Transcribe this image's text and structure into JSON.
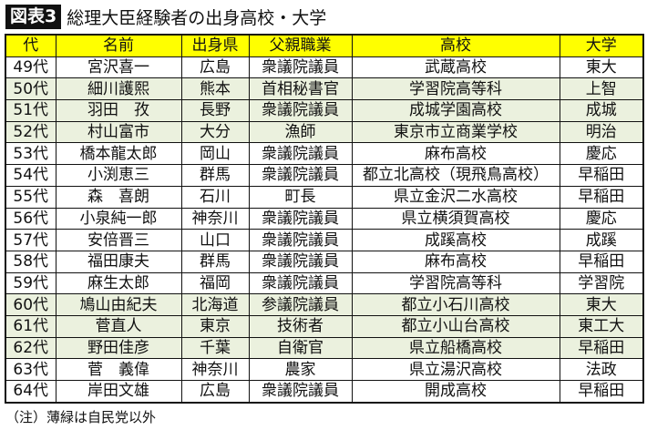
{
  "title": {
    "badge": "図表3",
    "text": "総理大臣経験者の出身高校・大学"
  },
  "colors": {
    "header": "#ffff00",
    "non_ldp_row": "#ebf1de"
  },
  "columns": [
    "代",
    "名前",
    "出身県",
    "父親職業",
    "高校",
    "大学"
  ],
  "rows": [
    {
      "gen": "49代",
      "name": "宮沢喜一",
      "pref": "広島",
      "father": "衆議院議員",
      "hs": "武蔵高校",
      "univ": "東大",
      "non_ldp": false
    },
    {
      "gen": "50代",
      "name": "細川護熙",
      "pref": "熊本",
      "father": "首相秘書官",
      "hs": "学習院高等科",
      "univ": "上智",
      "non_ldp": true
    },
    {
      "gen": "51代",
      "name": "羽田　孜",
      "pref": "長野",
      "father": "衆議院議員",
      "hs": "成城学園高校",
      "univ": "成城",
      "non_ldp": true
    },
    {
      "gen": "52代",
      "name": "村山富市",
      "pref": "大分",
      "father": "漁師",
      "hs": "東京市立商業学校",
      "univ": "明治",
      "non_ldp": true
    },
    {
      "gen": "53代",
      "name": "橋本龍太郎",
      "pref": "岡山",
      "father": "衆議院議員",
      "hs": "麻布高校",
      "univ": "慶応",
      "non_ldp": false
    },
    {
      "gen": "54代",
      "name": "小渕恵三",
      "pref": "群馬",
      "father": "衆議院議員",
      "hs": "都立北高校（現飛鳥高校）",
      "univ": "早稲田",
      "non_ldp": false
    },
    {
      "gen": "55代",
      "name": "森　喜朗",
      "pref": "石川",
      "father": "町長",
      "hs": "県立金沢二水高校",
      "univ": "早稲田",
      "non_ldp": false
    },
    {
      "gen": "56代",
      "name": "小泉純一郎",
      "pref": "神奈川",
      "father": "衆議院議員",
      "hs": "県立横須賀高校",
      "univ": "慶応",
      "non_ldp": false
    },
    {
      "gen": "57代",
      "name": "安倍晋三",
      "pref": "山口",
      "father": "衆議院議員",
      "hs": "成蹊高校",
      "univ": "成蹊",
      "non_ldp": false
    },
    {
      "gen": "58代",
      "name": "福田康夫",
      "pref": "群馬",
      "father": "衆議院議員",
      "hs": "麻布高校",
      "univ": "早稲田",
      "non_ldp": false
    },
    {
      "gen": "59代",
      "name": "麻生太郎",
      "pref": "福岡",
      "father": "衆議院議員",
      "hs": "学習院高等科",
      "univ": "学習院",
      "non_ldp": false
    },
    {
      "gen": "60代",
      "name": "鳩山由紀夫",
      "pref": "北海道",
      "father": "参議院議員",
      "hs": "都立小石川高校",
      "univ": "東大",
      "non_ldp": true
    },
    {
      "gen": "61代",
      "name": "菅直人",
      "pref": "東京",
      "father": "技術者",
      "hs": "都立小山台高校",
      "univ": "東工大",
      "non_ldp": true
    },
    {
      "gen": "62代",
      "name": "野田佳彦",
      "pref": "千葉",
      "father": "自衛官",
      "hs": "県立船橋高校",
      "univ": "早稲田",
      "non_ldp": true
    },
    {
      "gen": "63代",
      "name": "菅　義偉",
      "pref": "神奈川",
      "father": "農家",
      "hs": "県立湯沢高校",
      "univ": "法政",
      "non_ldp": false
    },
    {
      "gen": "64代",
      "name": "岸田文雄",
      "pref": "広島",
      "father": "衆議院議員",
      "hs": "開成高校",
      "univ": "早稲田",
      "non_ldp": false
    }
  ],
  "note": "（注）薄緑は自民党以外"
}
